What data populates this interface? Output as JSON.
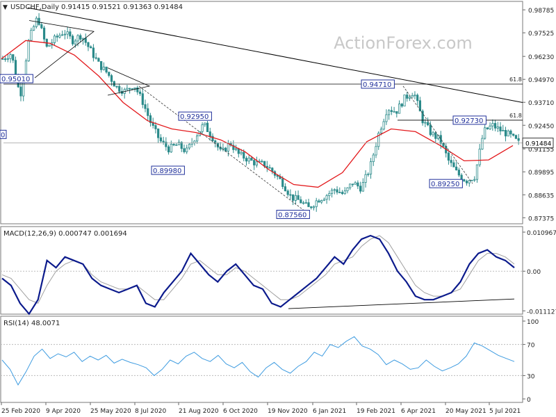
{
  "header": {
    "symbol": "USDCHF,Daily",
    "ohlc": "0.91415 0.91521 0.91363 0.91484",
    "watermark": "ActionForex.com"
  },
  "colors": {
    "candle": "#2a8a8a",
    "ma": "#e3181b",
    "macd_main": "#0b1a8c",
    "macd_signal": "#a0a0a0",
    "rsi": "#3d9be0",
    "trendline": "#000000",
    "label_border": "#1f2f9a",
    "grid_label": "#222222"
  },
  "chart_data": [
    {
      "type": "candlestick",
      "title": "USDCHF,Daily",
      "ylim": [
        0.8712,
        0.9902
      ],
      "y_ticks": [
        "0.98785",
        "0.97525",
        "0.96230",
        "0.94970",
        "0.93710",
        "0.92450",
        "0.91155",
        "0.89895",
        "0.88635",
        "0.87375"
      ],
      "x_ticks": [
        "25 Feb 2020",
        "9 Apr 2020",
        "25 May 2020",
        "8 Jul 2020",
        "21 Aug 2020",
        "6 Oct 2020",
        "19 Nov 2020",
        "6 Jan 2021",
        "19 Feb 2021",
        "6 Apr 2021",
        "20 May 2021",
        "5 Jul 2021"
      ],
      "price_path": [
        [
          0.954,
          0.968
        ],
        [
          0.95,
          0.978
        ],
        [
          0.93,
          0.95
        ],
        [
          0.965,
          0.978
        ],
        [
          0.978,
          0.99
        ],
        [
          0.972,
          0.962
        ],
        [
          0.966,
          0.978
        ],
        [
          0.97,
          0.982
        ],
        [
          0.966,
          0.976
        ],
        [
          0.97,
          0.978
        ],
        [
          0.964,
          0.968
        ],
        [
          0.956,
          0.96
        ],
        [
          0.95,
          0.956
        ],
        [
          0.942,
          0.949
        ],
        [
          0.94,
          0.946
        ],
        [
          0.944,
          0.95
        ],
        [
          0.932,
          0.943
        ],
        [
          0.922,
          0.928
        ],
        [
          0.912,
          0.92
        ],
        [
          0.915,
          0.908
        ],
        [
          0.91,
          0.918
        ],
        [
          0.906,
          0.914
        ],
        [
          0.915,
          0.921
        ],
        [
          0.927,
          0.923
        ],
        [
          0.916,
          0.92
        ],
        [
          0.906,
          0.912
        ],
        [
          0.912,
          0.918
        ],
        [
          0.911,
          0.906
        ],
        [
          0.904,
          0.908
        ],
        [
          0.902,
          0.905
        ],
        [
          0.9,
          0.906
        ],
        [
          0.897,
          0.9
        ],
        [
          0.89,
          0.896
        ],
        [
          0.887,
          0.883
        ],
        [
          0.88,
          0.886
        ],
        [
          0.876,
          0.882
        ],
        [
          0.881,
          0.886
        ],
        [
          0.884,
          0.888
        ],
        [
          0.887,
          0.892
        ],
        [
          0.885,
          0.888
        ],
        [
          0.89,
          0.896
        ],
        [
          0.888,
          0.892
        ],
        [
          0.896,
          0.906
        ],
        [
          0.915,
          0.925
        ],
        [
          0.93,
          0.938
        ],
        [
          0.928,
          0.936
        ],
        [
          0.935,
          0.944
        ],
        [
          0.946,
          0.94
        ],
        [
          0.93,
          0.925
        ],
        [
          0.922,
          0.918
        ],
        [
          0.918,
          0.915
        ],
        [
          0.908,
          0.902
        ],
        [
          0.9,
          0.896
        ],
        [
          0.895,
          0.893
        ],
        [
          0.896,
          0.897
        ],
        [
          0.918,
          0.924
        ],
        [
          0.927,
          0.922
        ],
        [
          0.919,
          0.924
        ],
        [
          0.923,
          0.915
        ],
        [
          0.9148,
          0.9148
        ]
      ],
      "moving_average": [
        [
          0.952,
          0.97
        ],
        [
          0.97,
          0.972
        ],
        [
          0.97,
          0.969
        ],
        [
          0.966,
          0.96
        ],
        [
          0.956,
          0.947
        ],
        [
          0.94,
          0.934
        ],
        [
          0.929,
          0.925
        ],
        [
          0.923,
          0.922
        ],
        [
          0.921,
          0.92
        ],
        [
          0.918,
          0.915
        ],
        [
          0.912,
          0.908
        ],
        [
          0.903,
          0.897
        ],
        [
          0.893,
          0.891
        ],
        [
          0.89,
          0.891
        ],
        [
          0.895,
          0.902
        ],
        [
          0.912,
          0.919
        ],
        [
          0.922,
          0.923
        ],
        [
          0.922,
          0.92
        ],
        [
          0.916,
          0.911
        ],
        [
          0.907,
          0.903
        ],
        [
          0.903,
          0.908
        ],
        [
          0.912,
          0.9148
        ]
      ],
      "price_markers": [
        {
          "label": "0.95010",
          "value": 0.9501
        },
        {
          "label": "0.92950",
          "value": 0.9295
        },
        {
          "label": "0.89980",
          "value": 0.8998
        },
        {
          "label": "0.87560",
          "value": 0.8756
        },
        {
          "label": "0.94710",
          "value": 0.9471
        },
        {
          "label": "0.92730",
          "value": 0.9273
        },
        {
          "label": "0.89250",
          "value": 0.8925
        }
      ],
      "fib_labels": [
        "61.8",
        "61.8"
      ],
      "current_price": "0.91484",
      "left_partial_label": "0"
    },
    {
      "type": "line",
      "title": "MACD(12,26,9) 0.000747 0.001694",
      "ylim": [
        -0.01127,
        0.010967
      ],
      "y_ticks": [
        "0.010967",
        "0.00",
        "-0.011127"
      ],
      "series": [
        {
          "name": "MACD main",
          "values": [
            -0.002,
            -0.004,
            -0.009,
            -0.012,
            -0.008,
            0.003,
            0.001,
            0.004,
            0.003,
            0.002,
            -0.002,
            -0.004,
            -0.005,
            -0.006,
            -0.005,
            -0.004,
            -0.009,
            -0.01,
            -0.006,
            -0.003,
            0.0,
            0.005,
            0.002,
            -0.001,
            -0.003,
            0.0,
            0.002,
            -0.001,
            -0.004,
            -0.005,
            -0.009,
            -0.01,
            -0.008,
            -0.006,
            -0.004,
            -0.002,
            0.001,
            0.004,
            0.002,
            0.006,
            0.009,
            0.01,
            0.009,
            0.005,
            0.0,
            -0.003,
            -0.007,
            -0.008,
            -0.008,
            -0.007,
            -0.006,
            -0.003,
            0.002,
            0.005,
            0.006,
            0.004,
            0.003,
            0.001
          ]
        },
        {
          "name": "MACD signal",
          "values": [
            -0.001,
            -0.002,
            -0.005,
            -0.008,
            -0.009,
            -0.004,
            0.0,
            0.002,
            0.003,
            0.002,
            -0.001,
            -0.003,
            -0.004,
            -0.005,
            -0.005,
            -0.004,
            -0.006,
            -0.008,
            -0.008,
            -0.005,
            -0.002,
            0.002,
            0.003,
            0.001,
            -0.001,
            -0.001,
            0.001,
            0.0,
            -0.002,
            -0.004,
            -0.006,
            -0.008,
            -0.008,
            -0.007,
            -0.005,
            -0.003,
            -0.001,
            0.002,
            0.003,
            0.004,
            0.007,
            0.009,
            0.01,
            0.008,
            0.004,
            0.0,
            -0.004,
            -0.006,
            -0.007,
            -0.007,
            -0.006,
            -0.005,
            -0.001,
            0.003,
            0.005,
            0.005,
            0.004,
            0.002
          ]
        }
      ]
    },
    {
      "type": "line",
      "title": "RSI(14) 48.0071",
      "ylim": [
        0,
        100
      ],
      "y_ticks": [
        "100",
        "70",
        "30",
        "0"
      ],
      "series": [
        {
          "name": "RSI(14)",
          "values": [
            50,
            38,
            18,
            35,
            55,
            64,
            52,
            58,
            54,
            60,
            48,
            55,
            50,
            56,
            46,
            51,
            47,
            44,
            40,
            30,
            38,
            50,
            45,
            55,
            60,
            52,
            48,
            56,
            45,
            40,
            47,
            35,
            28,
            40,
            47,
            38,
            33,
            42,
            48,
            60,
            55,
            70,
            66,
            74,
            80,
            68,
            64,
            57,
            44,
            50,
            45,
            38,
            40,
            50,
            42,
            36,
            40,
            45,
            55,
            72,
            68,
            62,
            56,
            52,
            48
          ]
        }
      ]
    }
  ]
}
